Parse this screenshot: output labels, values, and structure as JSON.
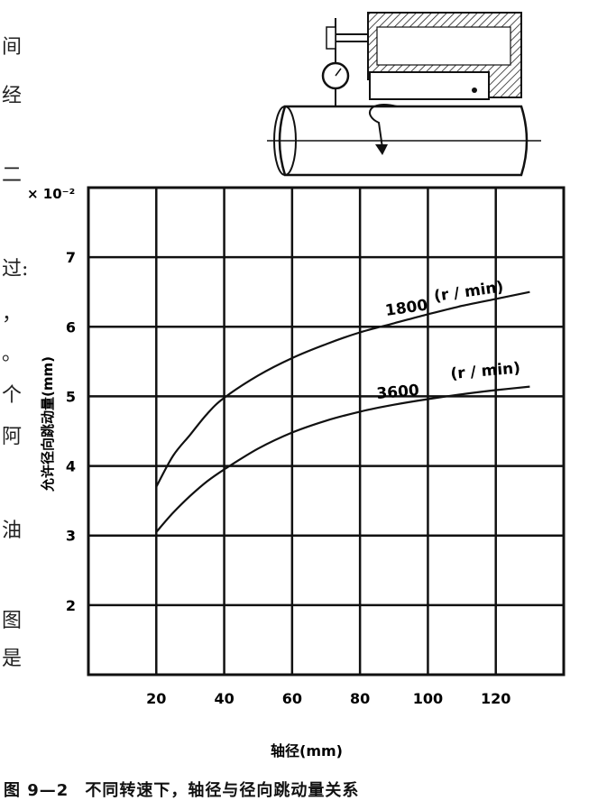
{
  "margin_fragments": [
    "间",
    "经",
    "二",
    "过:",
    "，",
    "。",
    "个",
    "阿",
    "油",
    "图",
    "是"
  ],
  "chart_data": {
    "type": "line",
    "title": "",
    "xlabel": "轴径(mm)",
    "ylabel": "允许径向跳动量(mm)",
    "y_scale_label": "× 10⁻²",
    "xlim": [
      0,
      140
    ],
    "ylim": [
      1,
      8
    ],
    "x_ticks": [
      20,
      40,
      60,
      80,
      100,
      120
    ],
    "y_ticks": [
      2,
      3,
      4,
      5,
      6,
      7
    ],
    "grid": true,
    "series": [
      {
        "name": "1800 (r / min)",
        "label_number": "1800",
        "label_unit": "(r / min)",
        "x": [
          20,
          25,
          30,
          35,
          40,
          50,
          60,
          70,
          80,
          90,
          100,
          110,
          120,
          130
        ],
        "y": [
          3.7,
          4.15,
          4.45,
          4.75,
          4.98,
          5.3,
          5.55,
          5.75,
          5.92,
          6.05,
          6.18,
          6.3,
          6.4,
          6.5
        ]
      },
      {
        "name": "3600 (r / min)",
        "label_number": "3600",
        "label_unit": "(r / min)",
        "x": [
          20,
          25,
          30,
          35,
          40,
          50,
          60,
          70,
          80,
          90,
          100,
          110,
          120,
          130
        ],
        "y": [
          3.05,
          3.33,
          3.57,
          3.78,
          3.95,
          4.25,
          4.48,
          4.65,
          4.78,
          4.88,
          4.96,
          5.03,
          5.09,
          5.14
        ]
      }
    ],
    "colors": {
      "ink": "#111111",
      "grid": "#111111"
    }
  },
  "caption": {
    "figure_number": "图 9—2",
    "text": "不同转速下，轴径与径向跳动量关系"
  }
}
